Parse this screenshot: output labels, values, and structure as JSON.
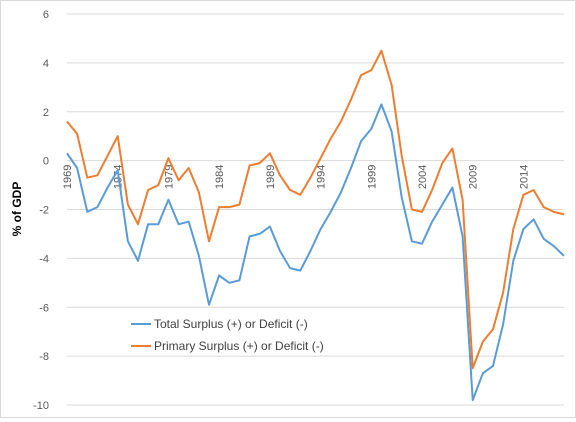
{
  "chart_data": {
    "type": "line",
    "title": "",
    "xlabel": "",
    "ylabel": "% of GDP",
    "ylim": [
      -10,
      6
    ],
    "yticks": [
      -10,
      -8,
      -6,
      -4,
      -2,
      0,
      2,
      4,
      6
    ],
    "xticks": [
      1969,
      1974,
      1979,
      1984,
      1989,
      1994,
      1999,
      2004,
      2009,
      2014
    ],
    "grid": true,
    "legend_position": "bottom-left",
    "x": [
      1969,
      1970,
      1971,
      1972,
      1973,
      1974,
      1975,
      1976,
      1977,
      1978,
      1979,
      1980,
      1981,
      1982,
      1983,
      1984,
      1985,
      1986,
      1987,
      1988,
      1989,
      1990,
      1991,
      1992,
      1993,
      1994,
      1995,
      1996,
      1997,
      1998,
      1999,
      2000,
      2001,
      2002,
      2003,
      2004,
      2005,
      2006,
      2007,
      2008,
      2009,
      2010,
      2011,
      2012,
      2013,
      2014,
      2015,
      2016,
      2017,
      2018
    ],
    "series": [
      {
        "name": "Total Surplus (+) or Deficit (-)",
        "color": "#5b9bd5",
        "values": [
          0.3,
          -0.3,
          -2.1,
          -1.9,
          -1.1,
          -0.4,
          -3.3,
          -4.1,
          -2.6,
          -2.6,
          -1.6,
          -2.6,
          -2.5,
          -3.9,
          -5.9,
          -4.7,
          -5.0,
          -4.9,
          -3.1,
          -3.0,
          -2.7,
          -3.7,
          -4.4,
          -4.5,
          -3.7,
          -2.8,
          -2.1,
          -1.3,
          -0.3,
          0.8,
          1.3,
          2.3,
          1.2,
          -1.5,
          -3.3,
          -3.4,
          -2.5,
          -1.8,
          -1.1,
          -3.1,
          -9.8,
          -8.7,
          -8.4,
          -6.7,
          -4.1,
          -2.8,
          -2.4,
          -3.2,
          -3.5,
          -3.9
        ]
      },
      {
        "name": "Primary Surplus (+) or Deficit (-)",
        "color": "#ed7d31",
        "values": [
          1.6,
          1.1,
          -0.7,
          -0.6,
          0.2,
          1.0,
          -1.8,
          -2.6,
          -1.2,
          -1.0,
          0.1,
          -0.8,
          -0.3,
          -1.3,
          -3.3,
          -1.9,
          -1.9,
          -1.8,
          -0.2,
          -0.1,
          0.3,
          -0.6,
          -1.2,
          -1.4,
          -0.7,
          0.1,
          0.9,
          1.6,
          2.5,
          3.5,
          3.7,
          4.5,
          3.1,
          0.2,
          -2.0,
          -2.1,
          -1.2,
          -0.1,
          0.5,
          -1.6,
          -8.5,
          -7.4,
          -6.9,
          -5.4,
          -2.8,
          -1.4,
          -1.2,
          -1.9,
          -2.1,
          -2.2
        ]
      }
    ]
  }
}
